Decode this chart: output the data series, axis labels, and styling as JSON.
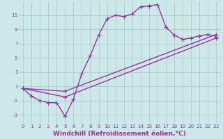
{
  "xlabel": "Windchill (Refroidissement éolien,°C)",
  "background_color": "#cce8e8",
  "grid_color": "#aacccc",
  "line_color": "#993399",
  "xlim": [
    -0.5,
    23.5
  ],
  "ylim": [
    -4.2,
    12.8
  ],
  "xticks": [
    0,
    1,
    2,
    3,
    4,
    5,
    6,
    7,
    8,
    9,
    10,
    11,
    12,
    13,
    14,
    15,
    16,
    17,
    18,
    19,
    20,
    21,
    22,
    23
  ],
  "yticks": [
    -3,
    -1,
    1,
    3,
    5,
    7,
    9,
    11
  ],
  "series1_x": [
    0,
    1,
    2,
    3,
    4,
    5,
    6,
    7,
    8,
    9,
    10,
    11,
    12,
    13,
    14,
    15,
    16,
    17,
    18,
    19,
    20,
    21,
    22,
    23
  ],
  "series1_y": [
    0.7,
    -0.4,
    -1.0,
    -1.3,
    -1.3,
    -3.2,
    -0.8,
    2.8,
    5.3,
    8.2,
    10.5,
    11.0,
    10.8,
    11.2,
    12.2,
    12.3,
    12.5,
    9.3,
    8.2,
    7.6,
    7.8,
    8.1,
    8.3,
    8.0
  ],
  "series2_x": [
    0,
    5,
    23
  ],
  "series2_y": [
    0.7,
    0.3,
    8.3
  ],
  "series3_x": [
    0,
    5,
    23
  ],
  "series3_y": [
    0.7,
    -0.5,
    7.8
  ],
  "marker_size": 2.5,
  "line_width": 1.0,
  "tick_fontsize": 5.2,
  "xlabel_fontsize": 6.5
}
